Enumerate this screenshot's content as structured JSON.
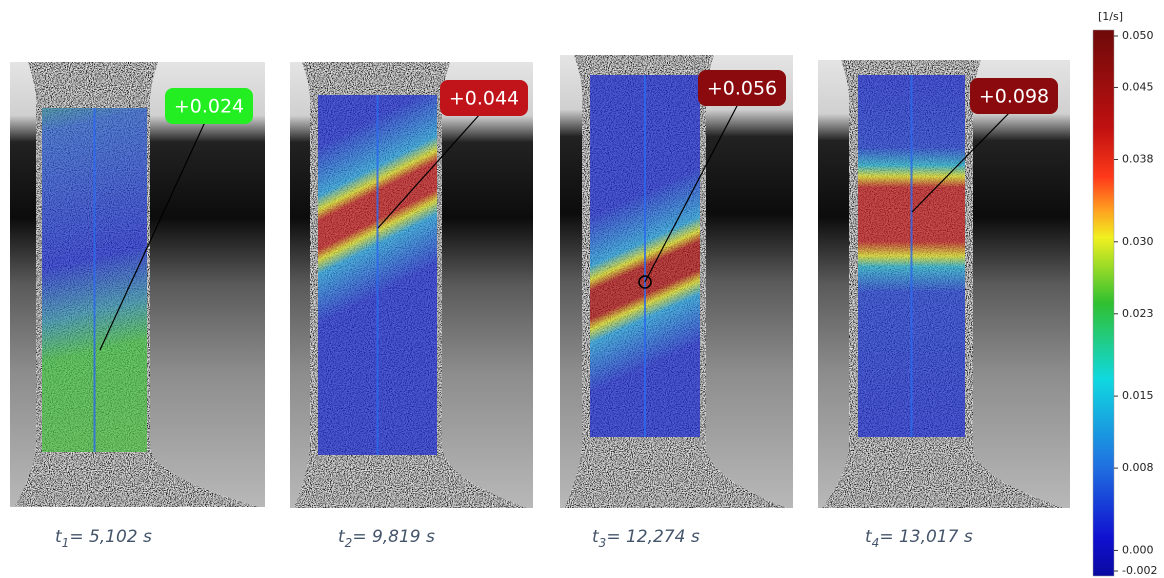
{
  "panels": [
    {
      "label": "+0.024",
      "label_color": "#22ee22",
      "time": {
        "symbol": "t",
        "subscript": "1",
        "text": "= 5,102 s"
      }
    },
    {
      "label": "+0.044",
      "label_color": "#c0141a",
      "time": {
        "symbol": "t",
        "subscript": "2",
        "text": "= 9,819 s"
      }
    },
    {
      "label": "+0.056",
      "label_color": "#8a0a0e",
      "time": {
        "symbol": "t",
        "subscript": "3",
        "text": "= 12,274 s"
      }
    },
    {
      "label": "+0.098",
      "label_color": "#8a0a0e",
      "time": {
        "symbol": "t",
        "subscript": "4",
        "text": "= 13,017 s"
      }
    }
  ],
  "colorbar": {
    "unit": "[1/s]",
    "ticks": [
      {
        "value": 0.05,
        "label": "0.050"
      },
      {
        "value": 0.045,
        "label": "0.045"
      },
      {
        "value": 0.038,
        "label": "0.038"
      },
      {
        "value": 0.03,
        "label": "0.030"
      },
      {
        "value": 0.023,
        "label": "0.023"
      },
      {
        "value": 0.015,
        "label": "0.015"
      },
      {
        "value": 0.008,
        "label": "0.008"
      },
      {
        "value": 0,
        "label": "0.000"
      },
      {
        "value": -0.002,
        "label": "-0.002"
      }
    ]
  }
}
